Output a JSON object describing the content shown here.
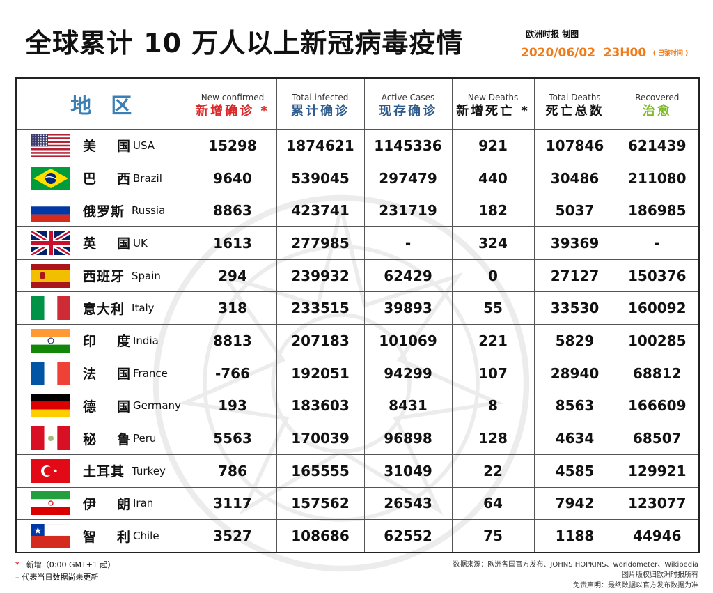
{
  "header": {
    "title": "全球累计 10 万人以上新冠病毒疫情",
    "publisher": "欧洲时报 制图",
    "date": "2020/06/02",
    "time": "23H00",
    "timezone_note": "( 巴黎时间 )"
  },
  "table": {
    "region_header": "地区",
    "columns": [
      {
        "en": "New confirmed",
        "zh": "新增确诊 *"
      },
      {
        "en": "Total infected",
        "zh": "累计确诊"
      },
      {
        "en": "Active Cases",
        "zh": "现存确诊"
      },
      {
        "en": "New Deaths",
        "zh": "新增死亡 *"
      },
      {
        "en": "Total Deaths",
        "zh": "死亡总数"
      },
      {
        "en": "Recovered",
        "zh": "治愈"
      }
    ],
    "rows": [
      {
        "zh": "美国",
        "en": "USA",
        "flag": "flag-usa",
        "values": [
          "15298",
          "1874621",
          "1145336",
          "921",
          "107846",
          "621439"
        ]
      },
      {
        "zh": "巴西",
        "en": "Brazil",
        "flag": "flag-brazil",
        "values": [
          "9640",
          "539045",
          "297479",
          "440",
          "30486",
          "211080"
        ]
      },
      {
        "zh": "俄罗斯",
        "en": "Russia",
        "flag": "flag-russia",
        "values": [
          "8863",
          "423741",
          "231719",
          "182",
          "5037",
          "186985"
        ]
      },
      {
        "zh": "英国",
        "en": "UK",
        "flag": "flag-uk",
        "values": [
          "1613",
          "277985",
          "-",
          "324",
          "39369",
          "-"
        ]
      },
      {
        "zh": "西班牙",
        "en": "Spain",
        "flag": "flag-spain",
        "values": [
          "294",
          "239932",
          "62429",
          "0",
          "27127",
          "150376"
        ]
      },
      {
        "zh": "意大利",
        "en": "Italy",
        "flag": "flag-italy",
        "values": [
          "318",
          "233515",
          "39893",
          "55",
          "33530",
          "160092"
        ]
      },
      {
        "zh": "印度",
        "en": "India",
        "flag": "flag-india",
        "values": [
          "8813",
          "207183",
          "101069",
          "221",
          "5829",
          "100285"
        ]
      },
      {
        "zh": "法国",
        "en": "France",
        "flag": "flag-france",
        "values": [
          "-766",
          "192051",
          "94299",
          "107",
          "28940",
          "68812"
        ]
      },
      {
        "zh": "德国",
        "en": "Germany",
        "flag": "flag-germany",
        "values": [
          "193",
          "183603",
          "8431",
          "8",
          "8563",
          "166609"
        ]
      },
      {
        "zh": "秘鲁",
        "en": "Peru",
        "flag": "flag-peru",
        "values": [
          "5563",
          "170039",
          "96898",
          "128",
          "4634",
          "68507"
        ]
      },
      {
        "zh": "土耳其",
        "en": "Turkey",
        "flag": "flag-turkey",
        "values": [
          "786",
          "165555",
          "31049",
          "22",
          "4585",
          "129921"
        ]
      },
      {
        "zh": "伊朗",
        "en": "Iran",
        "flag": "flag-iran",
        "values": [
          "3117",
          "157562",
          "26543",
          "64",
          "7942",
          "123077"
        ]
      },
      {
        "zh": "智利",
        "en": "Chile",
        "flag": "flag-chile",
        "values": [
          "3527",
          "108686",
          "62552",
          "75",
          "1188",
          "44946"
        ]
      }
    ]
  },
  "footer": {
    "note_star_symbol": "*",
    "note_star": "新增（0:00 GMT+1 起）",
    "note_dash_symbol": "–",
    "note_dash": "代表当日数据尚未更新",
    "source": "数据来源：欧洲各国官方发布、JOHNS HOPKINS、worldometer、Wikipedia",
    "copyright": "图片版权归欧洲时报所有",
    "disclaimer": "免责声明：最终数据以官方发布数据为准"
  },
  "colors": {
    "accent_orange": "#f07a18",
    "header_red": "#d9282a",
    "header_blue": "#2f5c8c",
    "header_green": "#7dbb2a",
    "region_blue": "#3d7fb3"
  }
}
